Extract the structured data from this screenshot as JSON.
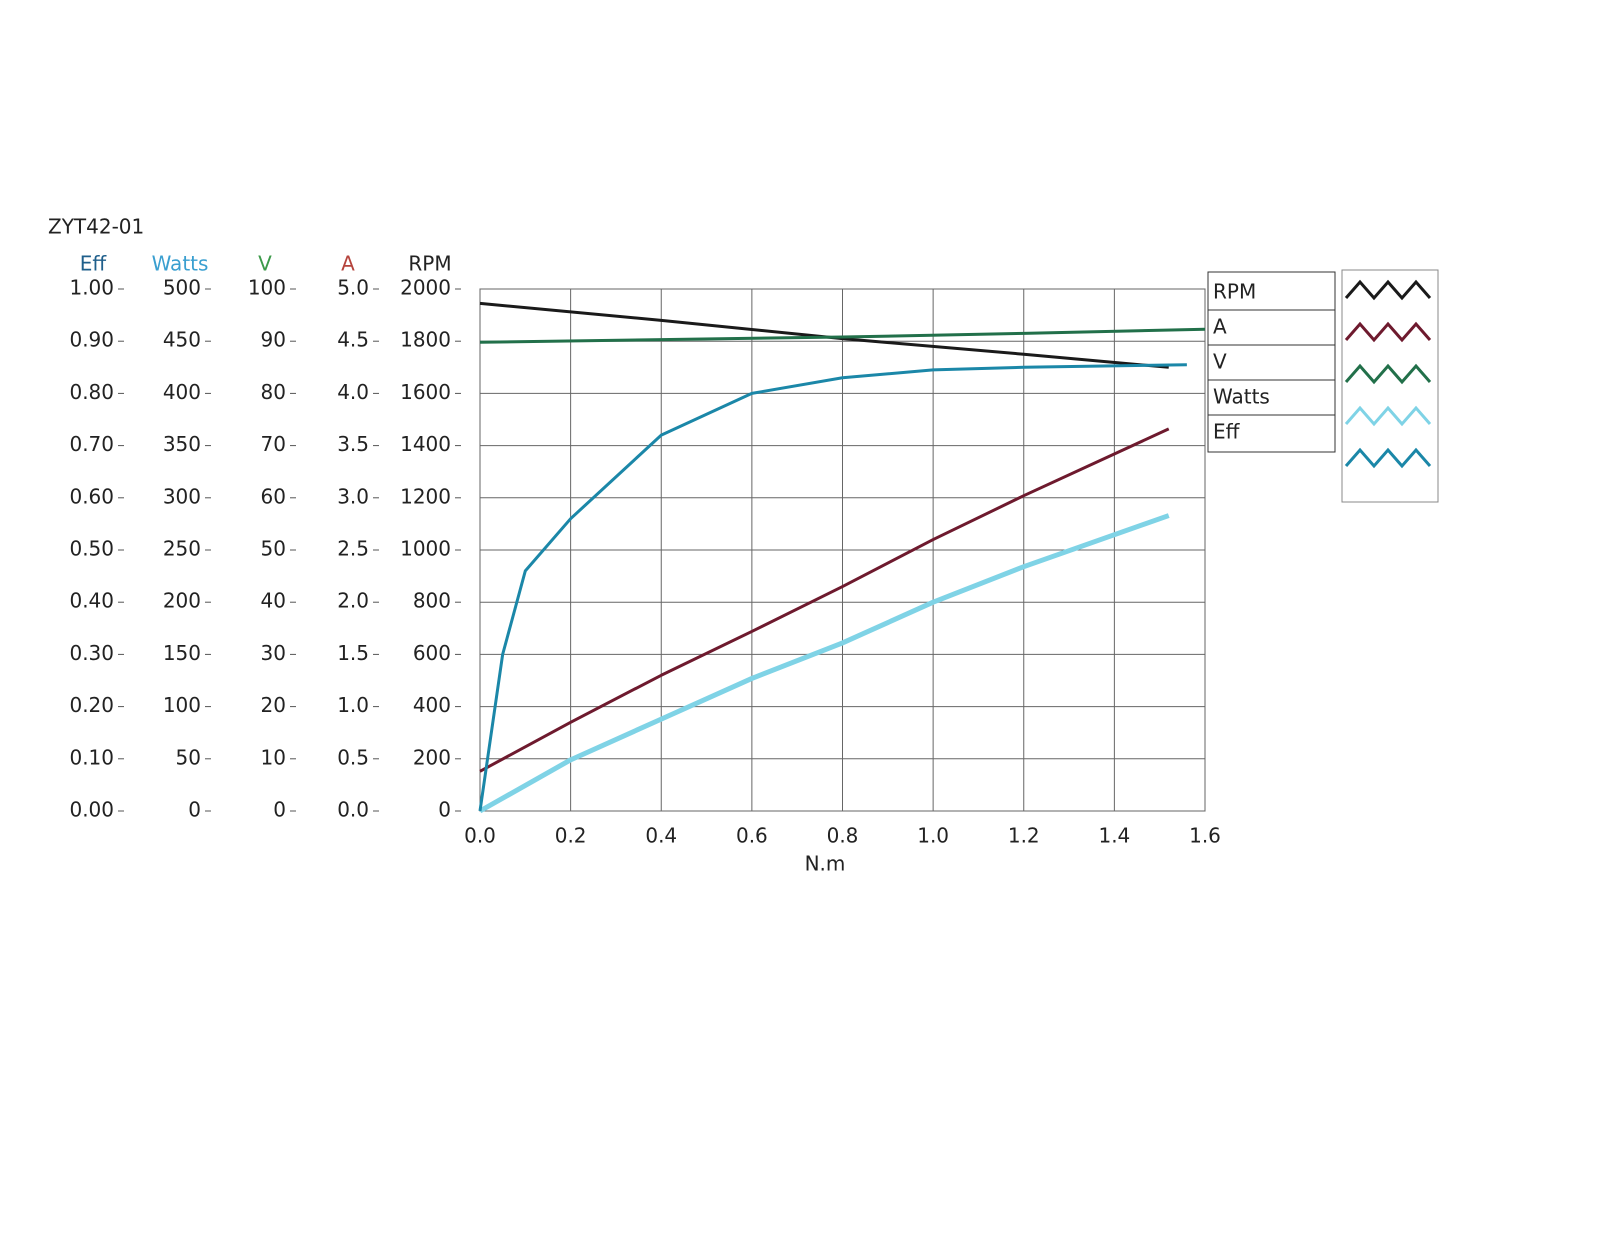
{
  "chart_data": {
    "type": "line",
    "title": "ZYT42-01",
    "x_label": "N.m",
    "xlim": [
      0,
      1.6
    ],
    "xticks": [
      {
        "value": 0,
        "label": "0.0"
      },
      {
        "value": 0.2,
        "label": "0.2"
      },
      {
        "value": 0.4,
        "label": "0.4"
      },
      {
        "value": 0.6,
        "label": "0.6"
      },
      {
        "value": 0.8,
        "label": "0.8"
      },
      {
        "value": 1.0,
        "label": "1.0"
      },
      {
        "value": 1.2,
        "label": "1.2"
      },
      {
        "value": 1.4,
        "label": "1.4"
      },
      {
        "value": 1.6,
        "label": "1.6"
      }
    ],
    "grid": true,
    "axes": [
      {
        "name": "Eff",
        "color": "#1f5f8b",
        "lim": [
          0,
          1
        ],
        "ticks": [
          {
            "value": 1,
            "label": "1.00"
          },
          {
            "value": 0.9,
            "label": "0.90"
          },
          {
            "value": 0.8,
            "label": "0.80"
          },
          {
            "value": 0.7,
            "label": "0.70"
          },
          {
            "value": 0.6,
            "label": "0.60"
          },
          {
            "value": 0.5,
            "label": "0.50"
          },
          {
            "value": 0.4,
            "label": "0.40"
          },
          {
            "value": 0.3,
            "label": "0.30"
          },
          {
            "value": 0.2,
            "label": "0.20"
          },
          {
            "value": 0.1,
            "label": "0.10"
          },
          {
            "value": 0,
            "label": "0.00"
          }
        ]
      },
      {
        "name": "Watts",
        "color": "#3a9fd0",
        "lim": [
          0,
          500
        ],
        "ticks": [
          500,
          450,
          400,
          350,
          300,
          250,
          200,
          150,
          100,
          50,
          0
        ]
      },
      {
        "name": "V",
        "color": "#3c9a4a",
        "lim": [
          0,
          100
        ],
        "ticks": [
          100,
          90,
          80,
          70,
          60,
          50,
          40,
          30,
          20,
          10,
          0
        ]
      },
      {
        "name": "A",
        "color": "#b5433c",
        "lim": [
          0,
          5
        ],
        "ticks": [
          {
            "value": 5,
            "label": "5.0"
          },
          {
            "value": 4.5,
            "label": "4.5"
          },
          {
            "value": 4,
            "label": "4.0"
          },
          {
            "value": 3.5,
            "label": "3.5"
          },
          {
            "value": 3,
            "label": "3.0"
          },
          {
            "value": 2.5,
            "label": "2.5"
          },
          {
            "value": 2,
            "label": "2.0"
          },
          {
            "value": 1.5,
            "label": "1.5"
          },
          {
            "value": 1,
            "label": "1.0"
          },
          {
            "value": 0.5,
            "label": "0.5"
          },
          {
            "value": 0,
            "label": "0.0"
          }
        ]
      },
      {
        "name": "RPM",
        "color": "#222222",
        "lim": [
          0,
          2000
        ],
        "ticks": [
          2000,
          1800,
          1600,
          1400,
          1200,
          1000,
          800,
          600,
          400,
          200,
          0
        ]
      }
    ],
    "series": [
      {
        "name": "RPM",
        "color": "#1a1a1a",
        "axis": "RPM",
        "x": [
          0,
          0.4,
          0.8,
          1.2,
          1.52
        ],
        "values": [
          1945,
          1880,
          1810,
          1750,
          1700
        ]
      },
      {
        "name": "A",
        "color": "#6e1a2e",
        "axis": "A",
        "x": [
          0,
          0.2,
          0.4,
          0.6,
          0.8,
          1.0,
          1.2,
          1.52
        ],
        "values": [
          0.38,
          0.85,
          1.3,
          1.72,
          2.15,
          2.6,
          3.02,
          3.66
        ]
      },
      {
        "name": "V",
        "color": "#22704a",
        "axis": "V",
        "x": [
          0,
          0.4,
          0.8,
          1.2,
          1.6
        ],
        "values": [
          89.8,
          90.3,
          90.8,
          91.5,
          92.3
        ]
      },
      {
        "name": "Watts",
        "color": "#7fd3e6",
        "axis": "Watts",
        "x": [
          0,
          0.2,
          0.4,
          0.6,
          0.8,
          1.0,
          1.2,
          1.52
        ],
        "values": [
          0,
          49,
          88,
          127,
          161,
          200,
          234,
          283
        ]
      },
      {
        "name": "Eff",
        "color": "#1b87a8",
        "axis": "Eff",
        "x": [
          0,
          0.05,
          0.1,
          0.2,
          0.4,
          0.6,
          0.8,
          1.0,
          1.2,
          1.56
        ],
        "values": [
          0,
          0.3,
          0.46,
          0.56,
          0.72,
          0.8,
          0.83,
          0.845,
          0.85,
          0.855
        ]
      }
    ]
  }
}
